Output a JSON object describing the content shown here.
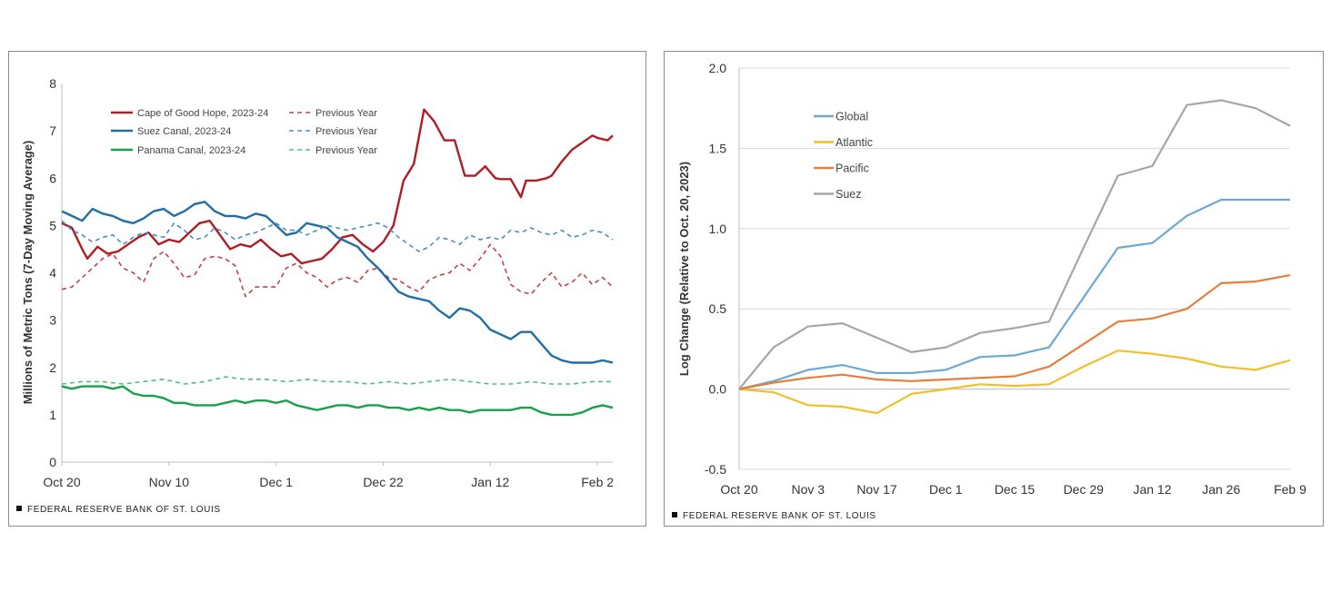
{
  "chart_data": [
    {
      "type": "line",
      "title": "",
      "ylabel": "Millions of Metric Tons (7-Day Moving Average)",
      "xlabel": "",
      "ylim": [
        0,
        8
      ],
      "yticks": [
        "0",
        "1",
        "2",
        "3",
        "4",
        "5",
        "6",
        "7",
        "8"
      ],
      "x_tick_labels": [
        "Oct 20",
        "Nov 10",
        "Dec 1",
        "Dec 22",
        "Jan 12",
        "Feb 2"
      ],
      "x_range_days": [
        0,
        108
      ],
      "x_units": "days after Oct 20",
      "grid": false,
      "legend_position": "top-left",
      "series": [
        {
          "name": "Cape of Good Hope, 2023-24",
          "color": "#b01c24",
          "dash": false,
          "x": [
            0,
            2,
            4,
            5,
            7,
            9,
            11,
            13,
            15,
            17,
            19,
            21,
            23,
            25,
            27,
            29,
            31,
            33,
            35,
            37,
            39,
            41,
            43,
            45,
            47,
            49,
            51,
            53,
            55,
            57,
            59,
            61,
            63,
            65,
            67,
            69,
            71,
            73,
            75,
            77,
            79,
            81,
            83,
            85,
            86,
            88,
            90,
            91,
            93,
            95,
            96,
            98,
            100,
            102,
            104,
            105,
            107,
            108
          ],
          "y": [
            5.05,
            4.95,
            4.5,
            4.3,
            4.55,
            4.4,
            4.45,
            4.6,
            4.75,
            4.85,
            4.6,
            4.7,
            4.65,
            4.85,
            5.05,
            5.1,
            4.8,
            4.5,
            4.6,
            4.55,
            4.7,
            4.5,
            4.35,
            4.4,
            4.2,
            4.25,
            4.3,
            4.5,
            4.75,
            4.8,
            4.6,
            4.45,
            4.65,
            5.0,
            5.95,
            6.3,
            7.45,
            7.2,
            6.8,
            6.8,
            6.05,
            6.05,
            6.25,
            6.0,
            5.98,
            5.98,
            5.6,
            5.95,
            5.95,
            6.0,
            6.05,
            6.35,
            6.6,
            6.75,
            6.9,
            6.85,
            6.8,
            6.9
          ]
        },
        {
          "name": "Previous Year",
          "color": "#c0434b",
          "dash": true,
          "x": [
            0,
            2,
            4,
            6,
            8,
            10,
            12,
            14,
            16,
            18,
            20,
            22,
            24,
            26,
            28,
            30,
            32,
            34,
            36,
            38,
            40,
            42,
            44,
            46,
            48,
            50,
            52,
            54,
            56,
            58,
            60,
            62,
            64,
            66,
            68,
            70,
            72,
            74,
            76,
            78,
            80,
            82,
            84,
            86,
            88,
            90,
            92,
            94,
            96,
            98,
            100,
            102,
            104,
            106,
            108
          ],
          "y": [
            3.65,
            3.7,
            3.9,
            4.1,
            4.3,
            4.4,
            4.1,
            4.0,
            3.8,
            4.3,
            4.45,
            4.2,
            3.9,
            3.95,
            4.3,
            4.35,
            4.3,
            4.15,
            3.5,
            3.7,
            3.7,
            3.7,
            4.1,
            4.2,
            4.0,
            3.9,
            3.7,
            3.85,
            3.9,
            3.8,
            4.05,
            4.1,
            3.9,
            3.85,
            3.7,
            3.6,
            3.85,
            3.95,
            4.0,
            4.2,
            4.05,
            4.3,
            4.6,
            4.35,
            3.75,
            3.6,
            3.55,
            3.8,
            4.0,
            3.7,
            3.8,
            4.0,
            3.75,
            3.9,
            3.7
          ]
        },
        {
          "name": "Suez Canal, 2023-24",
          "color": "#1f6ea6",
          "dash": false,
          "x": [
            0,
            2,
            4,
            6,
            8,
            10,
            12,
            14,
            16,
            18,
            20,
            22,
            24,
            26,
            28,
            30,
            32,
            34,
            36,
            38,
            40,
            42,
            44,
            46,
            48,
            50,
            52,
            54,
            56,
            58,
            60,
            62,
            64,
            66,
            68,
            70,
            72,
            74,
            76,
            78,
            80,
            82,
            84,
            86,
            88,
            90,
            92,
            94,
            96,
            98,
            100,
            102,
            104,
            106,
            108
          ],
          "y": [
            5.3,
            5.2,
            5.1,
            5.35,
            5.25,
            5.2,
            5.1,
            5.05,
            5.15,
            5.3,
            5.35,
            5.2,
            5.3,
            5.45,
            5.5,
            5.3,
            5.2,
            5.2,
            5.15,
            5.25,
            5.2,
            5.0,
            4.8,
            4.85,
            5.05,
            5.0,
            4.95,
            4.75,
            4.65,
            4.55,
            4.3,
            4.1,
            3.85,
            3.6,
            3.5,
            3.45,
            3.4,
            3.2,
            3.05,
            3.25,
            3.2,
            3.05,
            2.8,
            2.7,
            2.6,
            2.75,
            2.75,
            2.5,
            2.25,
            2.15,
            2.1,
            2.1,
            2.1,
            2.15,
            2.1
          ]
        },
        {
          "name": "Previous Year",
          "color": "#4a90b8",
          "dash": true,
          "x": [
            0,
            2,
            4,
            6,
            8,
            10,
            12,
            14,
            16,
            18,
            20,
            22,
            24,
            26,
            28,
            30,
            32,
            34,
            36,
            38,
            40,
            42,
            44,
            46,
            48,
            50,
            52,
            54,
            56,
            58,
            60,
            62,
            64,
            66,
            68,
            70,
            72,
            74,
            76,
            78,
            80,
            82,
            84,
            86,
            88,
            90,
            92,
            94,
            96,
            98,
            100,
            102,
            104,
            106,
            108
          ],
          "y": [
            5.1,
            4.9,
            4.8,
            4.65,
            4.75,
            4.8,
            4.6,
            4.75,
            4.85,
            4.8,
            4.75,
            5.05,
            4.9,
            4.7,
            4.75,
            4.95,
            4.85,
            4.7,
            4.8,
            4.85,
            4.95,
            5.05,
            4.9,
            4.9,
            4.8,
            4.9,
            5.0,
            4.95,
            4.9,
            4.95,
            5.0,
            5.05,
            4.95,
            4.75,
            4.6,
            4.45,
            4.55,
            4.75,
            4.7,
            4.6,
            4.8,
            4.7,
            4.75,
            4.7,
            4.9,
            4.85,
            4.95,
            4.85,
            4.8,
            4.9,
            4.75,
            4.8,
            4.9,
            4.85,
            4.7
          ]
        },
        {
          "name": "Panama Canal, 2023-24",
          "color": "#17a14a",
          "dash": false,
          "x": [
            0,
            2,
            4,
            6,
            8,
            10,
            12,
            14,
            16,
            18,
            20,
            22,
            24,
            26,
            28,
            30,
            32,
            34,
            36,
            38,
            40,
            42,
            44,
            46,
            48,
            50,
            52,
            54,
            56,
            58,
            60,
            62,
            64,
            66,
            68,
            70,
            72,
            74,
            76,
            78,
            80,
            82,
            84,
            86,
            88,
            90,
            92,
            94,
            96,
            98,
            100,
            102,
            104,
            106,
            108
          ],
          "y": [
            1.6,
            1.55,
            1.6,
            1.6,
            1.6,
            1.55,
            1.6,
            1.45,
            1.4,
            1.4,
            1.35,
            1.25,
            1.25,
            1.2,
            1.2,
            1.2,
            1.25,
            1.3,
            1.25,
            1.3,
            1.3,
            1.25,
            1.3,
            1.2,
            1.15,
            1.1,
            1.15,
            1.2,
            1.2,
            1.15,
            1.2,
            1.2,
            1.15,
            1.15,
            1.1,
            1.15,
            1.1,
            1.15,
            1.1,
            1.1,
            1.05,
            1.1,
            1.1,
            1.1,
            1.1,
            1.15,
            1.15,
            1.05,
            1.0,
            1.0,
            1.0,
            1.05,
            1.15,
            1.2,
            1.15
          ]
        },
        {
          "name": "Previous Year",
          "color": "#4cc085",
          "dash": true,
          "x": [
            0,
            4,
            8,
            12,
            16,
            20,
            24,
            28,
            32,
            36,
            40,
            44,
            48,
            52,
            56,
            60,
            64,
            68,
            72,
            76,
            80,
            84,
            88,
            92,
            96,
            100,
            104,
            108
          ],
          "y": [
            1.65,
            1.7,
            1.7,
            1.65,
            1.7,
            1.75,
            1.65,
            1.7,
            1.8,
            1.75,
            1.75,
            1.7,
            1.75,
            1.7,
            1.7,
            1.65,
            1.7,
            1.65,
            1.7,
            1.75,
            1.7,
            1.65,
            1.65,
            1.7,
            1.65,
            1.65,
            1.7,
            1.7
          ]
        }
      ]
    },
    {
      "type": "line",
      "title": "",
      "ylabel": "Log Change (Relative to Oct. 20, 2023)",
      "xlabel": "",
      "ylim": [
        -0.5,
        2.0
      ],
      "yticks": [
        "-0.5",
        "0.0",
        "0.5",
        "1.0",
        "1.5",
        "2.0"
      ],
      "categories": [
        "Oct 20",
        "Nov 3",
        "Nov 17",
        "Dec 1",
        "Dec 15",
        "Dec 29",
        "Jan 12",
        "Jan 26",
        "Feb 9"
      ],
      "x": [
        0,
        1,
        2,
        3,
        4,
        5,
        6,
        7,
        8,
        9,
        10,
        11,
        12,
        13,
        14,
        15,
        16
      ],
      "grid": true,
      "legend_position": "top-left",
      "series": [
        {
          "name": "Global",
          "color": "#6fa8d0",
          "values": [
            0.0,
            0.05,
            0.12,
            0.15,
            0.1,
            0.1,
            0.12,
            0.2,
            0.21,
            0.26,
            0.57,
            0.88,
            0.91,
            1.08,
            1.18,
            1.18,
            1.18
          ]
        },
        {
          "name": "Atlantic",
          "color": "#f2bf27",
          "values": [
            0.0,
            -0.02,
            -0.1,
            -0.11,
            -0.15,
            -0.03,
            0.0,
            0.03,
            0.02,
            0.03,
            0.14,
            0.24,
            0.22,
            0.19,
            0.14,
            0.12,
            0.18
          ]
        },
        {
          "name": "Pacific",
          "color": "#e47f3e",
          "values": [
            0.0,
            0.04,
            0.07,
            0.09,
            0.06,
            0.05,
            0.06,
            0.07,
            0.08,
            0.14,
            0.28,
            0.42,
            0.44,
            0.5,
            0.66,
            0.67,
            0.71
          ]
        },
        {
          "name": "Suez",
          "color": "#a6a6a6",
          "values": [
            0.0,
            0.26,
            0.39,
            0.41,
            0.32,
            0.23,
            0.26,
            0.35,
            0.38,
            0.42,
            0.88,
            1.33,
            1.39,
            1.77,
            1.8,
            1.75,
            1.64
          ]
        }
      ]
    }
  ],
  "source_left": "FEDERAL RESERVE BANK OF ST. LOUIS",
  "source_right": "FEDERAL RESERVE BANK OF ST. LOUIS"
}
